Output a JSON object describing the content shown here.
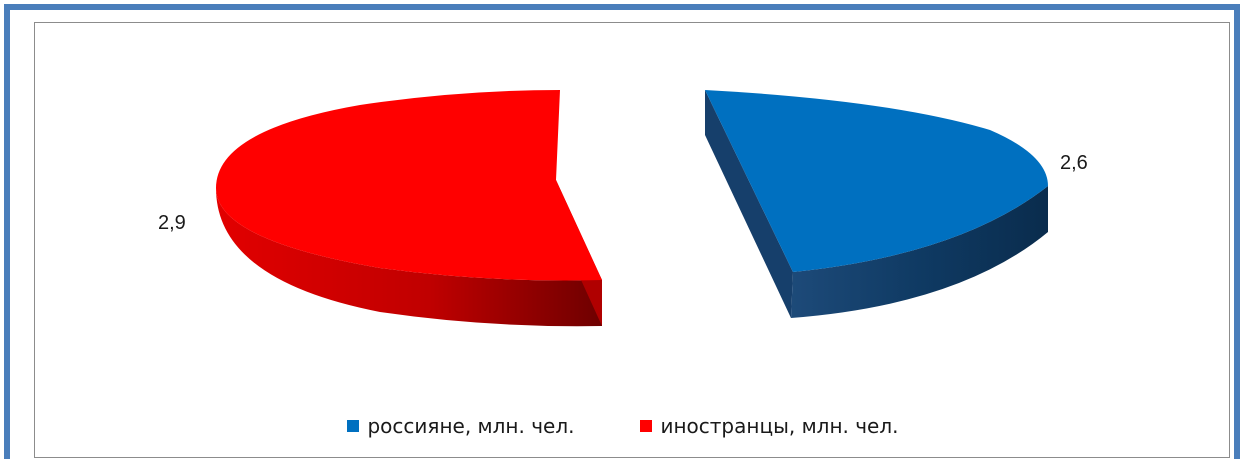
{
  "chart_data": {
    "type": "pie",
    "exploded": true,
    "three_d": true,
    "series": [
      {
        "name": "россияне, млн. чел.",
        "value": 2.6,
        "value_label": "2,6",
        "color": "#0070c0"
      },
      {
        "name": "иностранцы, млн. чел.",
        "value": 2.9,
        "value_label": "2,9",
        "color": "#ff0000"
      }
    ],
    "legend_position": "bottom"
  }
}
